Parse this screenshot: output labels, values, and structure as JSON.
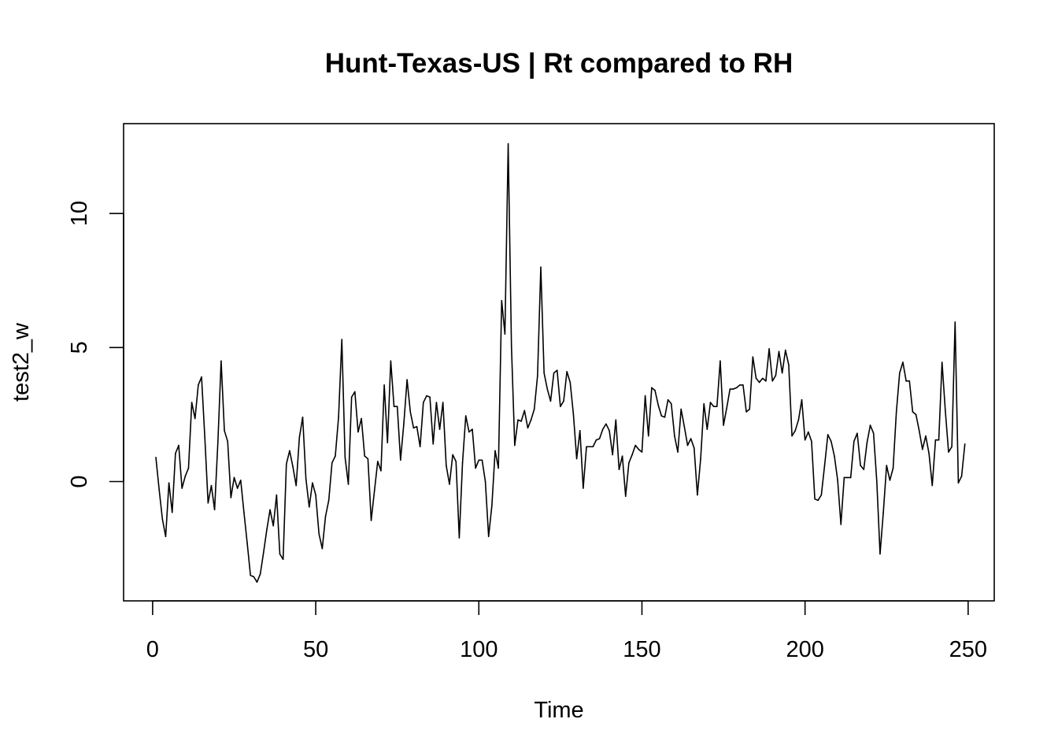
{
  "chart_data": {
    "type": "line",
    "title": "Hunt-Texas-US | Rt compared to RH",
    "xlabel": "Time",
    "ylabel": "test2_w",
    "xlim": [
      -8.9,
      258
    ],
    "ylim": [
      -4.45,
      13.35
    ],
    "xticks": [
      0,
      50,
      100,
      150,
      200,
      250
    ],
    "yticks": [
      0,
      5,
      10
    ],
    "grid": false,
    "legend": "none",
    "line_color": "#000000",
    "series": [
      {
        "x_start": 1,
        "values": [
          0.9,
          -0.3,
          -1.4,
          -2.05,
          -0.05,
          -1.15,
          1.05,
          1.35,
          -0.25,
          0.2,
          0.5,
          2.95,
          2.35,
          3.6,
          3.9,
          1.65,
          -0.8,
          -0.15,
          -1.05,
          1.45,
          4.5,
          1.9,
          1.5,
          -0.6,
          0.15,
          -0.25,
          0.05,
          -1.15,
          -2.3,
          -3.5,
          -3.55,
          -3.75,
          -3.45,
          -2.65,
          -1.8,
          -1.05,
          -1.65,
          -0.5,
          -2.7,
          -2.9,
          0.65,
          1.15,
          0.55,
          -0.15,
          1.65,
          2.4,
          0.1,
          -0.95,
          -0.05,
          -0.5,
          -1.95,
          -2.5,
          -1.3,
          -0.7,
          0.7,
          0.95,
          2.4,
          5.3,
          0.9,
          -0.1,
          3.15,
          3.35,
          1.85,
          2.35,
          0.95,
          0.85,
          -1.45,
          -0.35,
          0.75,
          0.4,
          3.6,
          1.45,
          4.5,
          2.8,
          2.8,
          0.8,
          2.15,
          3.8,
          2.6,
          2.0,
          2.05,
          1.3,
          2.95,
          3.2,
          3.15,
          1.4,
          2.95,
          1.95,
          2.95,
          0.6,
          -0.1,
          1.0,
          0.75,
          -2.1,
          0.7,
          2.45,
          1.85,
          1.95,
          0.5,
          0.8,
          0.8,
          0.0,
          -2.05,
          -0.9,
          1.15,
          0.5,
          6.75,
          5.5,
          12.6,
          5.05,
          1.35,
          2.3,
          2.25,
          2.65,
          2.0,
          2.3,
          2.7,
          3.95,
          8.0,
          4.05,
          3.45,
          3.0,
          4.05,
          4.15,
          2.8,
          3.0,
          4.1,
          3.7,
          2.5,
          0.85,
          1.9,
          -0.25,
          1.3,
          1.3,
          1.3,
          1.55,
          1.6,
          1.95,
          2.15,
          1.9,
          1.0,
          2.3,
          0.45,
          0.95,
          -0.55,
          0.7,
          1.0,
          1.35,
          1.2,
          1.1,
          3.2,
          1.7,
          3.5,
          3.4,
          2.85,
          2.45,
          2.4,
          3.05,
          2.9,
          1.7,
          1.1,
          2.7,
          2.05,
          1.35,
          1.6,
          1.25,
          -0.5,
          0.85,
          2.9,
          1.95,
          2.95,
          2.8,
          2.8,
          4.5,
          2.1,
          2.75,
          3.45,
          3.45,
          3.5,
          3.6,
          3.6,
          2.6,
          2.7,
          4.65,
          3.85,
          3.7,
          3.85,
          3.75,
          4.95,
          3.75,
          3.95,
          4.85,
          4.05,
          4.9,
          4.35,
          1.7,
          1.9,
          2.3,
          3.05,
          1.55,
          1.85,
          1.5,
          -0.65,
          -0.7,
          -0.5,
          0.6,
          1.75,
          1.5,
          0.95,
          0.05,
          -1.6,
          0.15,
          0.15,
          0.15,
          1.5,
          1.8,
          0.6,
          0.45,
          1.45,
          2.1,
          1.8,
          0.0,
          -2.7,
          -1.15,
          0.6,
          0.05,
          0.5,
          2.6,
          4.05,
          4.45,
          3.75,
          3.75,
          2.6,
          2.5,
          1.9,
          1.2,
          1.7,
          1.05,
          -0.15,
          1.55,
          1.55,
          4.45,
          2.65,
          1.1,
          1.3,
          5.95,
          -0.05,
          0.2,
          1.4
        ]
      }
    ]
  }
}
